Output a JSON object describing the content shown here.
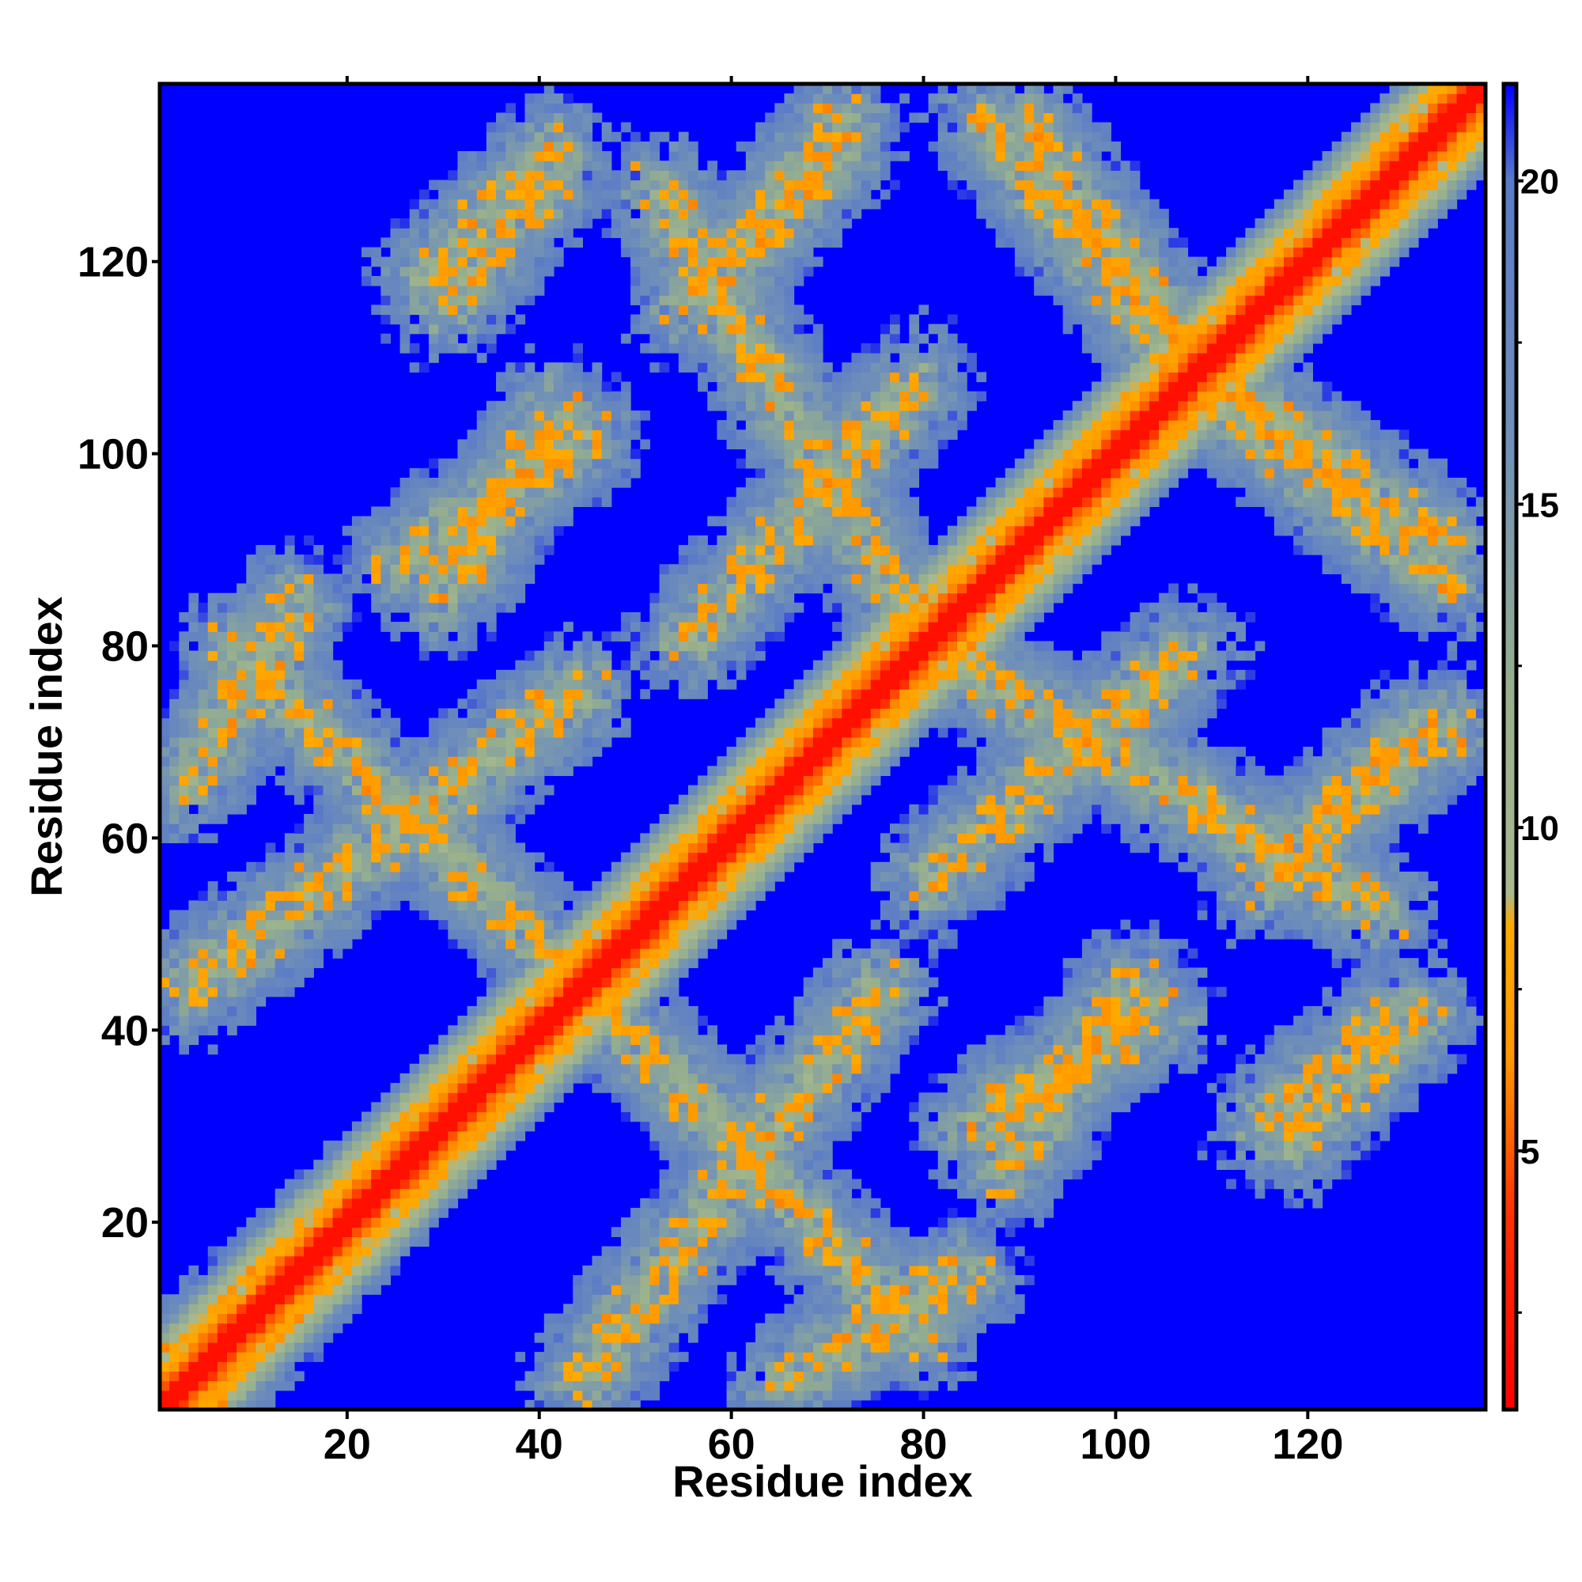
{
  "chart_data": {
    "type": "heatmap",
    "title": "",
    "xlabel": "Residue index",
    "ylabel": "Residue index",
    "xlim": [
      1,
      138
    ],
    "ylim": [
      1,
      138
    ],
    "x_ticks": [
      20,
      40,
      60,
      80,
      100,
      120
    ],
    "y_ticks": [
      20,
      40,
      60,
      80,
      100,
      120
    ],
    "colorbar": {
      "range": [
        1,
        21.5
      ],
      "ticks": [
        5,
        10,
        15,
        20
      ],
      "tick_labels": [
        "5",
        "10",
        "15",
        "20"
      ],
      "stops": [
        {
          "value": 1,
          "color": "#ff0000"
        },
        {
          "value": 4,
          "color": "#ff3000"
        },
        {
          "value": 6.5,
          "color": "#ff9900"
        },
        {
          "value": 8.5,
          "color": "#ffaa00"
        },
        {
          "value": 9,
          "color": "#a8b890"
        },
        {
          "value": 12,
          "color": "#98b08c"
        },
        {
          "value": 16,
          "color": "#7090b8"
        },
        {
          "value": 20,
          "color": "#5a7ac8"
        },
        {
          "value": 21.5,
          "color": "#0000ff"
        }
      ]
    },
    "background_color": "#0000ff",
    "grid": false,
    "description_of_values": "Symmetric residue-residue distance map; values near diagonal are small (red), far contacts are large (blue)",
    "contact_bands": [
      {
        "x_range": [
          3,
          45
        ],
        "y_range": [
          44,
          76
        ],
        "direction": "anti"
      },
      {
        "x_range": [
          45,
          80
        ],
        "y_range": [
          44,
          8
        ],
        "direction": "anti"
      },
      {
        "x_range": [
          80,
          128
        ],
        "y_range": [
          80,
          52
        ],
        "direction": "anti"
      },
      {
        "x_range": [
          55,
          80
        ],
        "y_range": [
          80,
          108
        ],
        "direction": "anti"
      },
      {
        "x_range": [
          105,
          135
        ],
        "y_range": [
          110,
          86
        ],
        "direction": "anti"
      },
      {
        "x_range": [
          90,
          108
        ],
        "y_range": [
          135,
          110
        ],
        "direction": "anti"
      },
      {
        "x_range": [
          25,
          45
        ],
        "y_range": [
          88,
          102
        ],
        "direction": "anti"
      },
      {
        "x_range": [
          28,
          42
        ],
        "y_range": [
          118,
          132
        ],
        "direction": "anti"
      },
      {
        "x_range": [
          55,
          72
        ],
        "y_range": [
          115,
          132
        ],
        "direction": "anti"
      },
      {
        "x_range": [
          85,
          105
        ],
        "y_range": [
          30,
          42
        ],
        "direction": "anti"
      },
      {
        "x_range": [
          115,
          130
        ],
        "y_range": [
          30,
          42
        ],
        "direction": "anti"
      },
      {
        "x_range": [
          65,
          85
        ],
        "y_range": [
          3,
          15
        ],
        "direction": "anti"
      },
      {
        "x_range": [
          3,
          30
        ],
        "y_range": [
          5,
          30
        ],
        "direction": "anti"
      },
      {
        "x_range": [
          120,
          135
        ],
        "y_range": [
          60,
          72
        ],
        "direction": "anti"
      }
    ]
  }
}
